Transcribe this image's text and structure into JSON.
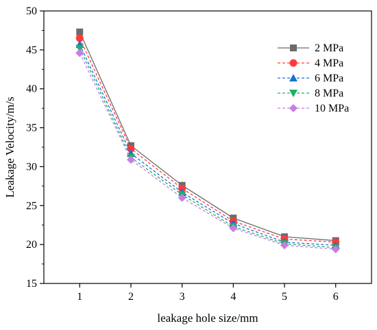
{
  "chart_data": {
    "type": "line",
    "title": "",
    "xlabel": "leakage hole size/mm",
    "ylabel": "Leakage Velocity/m/s",
    "x": [
      1,
      2,
      3,
      4,
      5,
      6
    ],
    "xlim": [
      0.3,
      6.7
    ],
    "ylim": [
      15,
      50
    ],
    "xticks": [
      "1",
      "2",
      "3",
      "4",
      "5",
      "6"
    ],
    "yticks": [
      "15",
      "20",
      "25",
      "30",
      "35",
      "40",
      "45",
      "50"
    ],
    "grid": false,
    "legend_position": "top-right",
    "series": [
      {
        "name": "2 MPa",
        "values": [
          47.3,
          32.7,
          27.6,
          23.4,
          21.0,
          20.5
        ],
        "color": "#6b6b6b",
        "marker": "square",
        "dash": "solid"
      },
      {
        "name": "4 MPa",
        "values": [
          46.5,
          32.3,
          27.2,
          23.0,
          20.7,
          20.3
        ],
        "color": "#ff3a3a",
        "marker": "circle",
        "dash": "dashed"
      },
      {
        "name": "6 MPa",
        "values": [
          45.7,
          31.7,
          26.7,
          22.7,
          20.3,
          19.9
        ],
        "color": "#1a6fd8",
        "marker": "triangle",
        "dash": "dashed"
      },
      {
        "name": "8 MPa",
        "values": [
          45.2,
          31.2,
          26.4,
          22.3,
          20.1,
          19.6
        ],
        "color": "#1fae6a",
        "marker": "triangle-down",
        "dash": "dashed"
      },
      {
        "name": "10 MPa",
        "values": [
          44.6,
          30.9,
          26.0,
          22.1,
          19.9,
          19.4
        ],
        "color": "#c77ee0",
        "marker": "diamond",
        "dash": "dashed"
      }
    ]
  }
}
